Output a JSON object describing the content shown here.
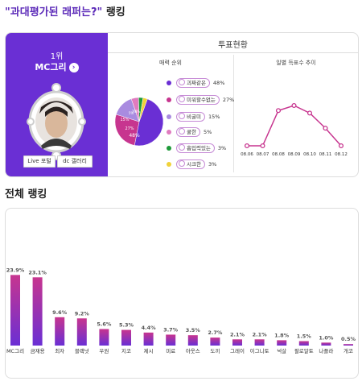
{
  "header": {
    "title_quote": "\"과대평가된 래퍼는?\"",
    "title_rest": " 랭킹"
  },
  "winner": {
    "rank": "1위",
    "name": "MC그리",
    "arrow": "›",
    "live_button": "Live 포털",
    "gallery_button": "dc 갤러리"
  },
  "vote": {
    "title": "투표현황",
    "charm_title": "매력 순위",
    "daily_title": "일별 득표수 추이",
    "pie_labels": [
      "48%",
      "27%",
      "15%",
      "5%",
      "3%",
      "3%"
    ],
    "legend": [
      {
        "label": "괴짜같은",
        "pct": "48%",
        "color": "#6a2fd4"
      },
      {
        "label": "미워할수없는",
        "pct": "27%",
        "color": "#c7358f"
      },
      {
        "label": "비굴미",
        "pct": "15%",
        "color": "#a98be0"
      },
      {
        "label": "쿨한",
        "pct": "5%",
        "color": "#e07bbf"
      },
      {
        "label": "흡입력있는",
        "pct": "3%",
        "color": "#1f9a3a"
      },
      {
        "label": "시크한",
        "pct": "3%",
        "color": "#f0d23a"
      }
    ],
    "daily_dates": [
      "08.06",
      "08.07",
      "08.08",
      "08.09",
      "08.10",
      "08.11",
      "08.12"
    ],
    "daily_values": [
      0,
      0,
      70,
      80,
      65,
      35,
      0
    ]
  },
  "ranking": {
    "title": "전체 랭킹"
  },
  "chart_data": {
    "type": "bar",
    "categories": [
      "MC그리",
      "금재용",
      "최자",
      "블랙넛",
      "우원",
      "지코",
      "제시",
      "미료",
      "아웃스",
      "도끼",
      "그레이",
      "이그니토",
      "넉살",
      "팔로알토",
      "나플라",
      "개코"
    ],
    "values": [
      23.9,
      23.1,
      9.6,
      9.2,
      5.6,
      5.3,
      4.4,
      3.7,
      3.5,
      2.7,
      2.1,
      2.1,
      1.8,
      1.5,
      1.0,
      0.5
    ],
    "labels": [
      "23.9%",
      "23.1%",
      "9.6%",
      "9.2%",
      "5.6%",
      "5.3%",
      "4.4%",
      "3.7%",
      "3.5%",
      "2.7%",
      "2.1%",
      "2.1%",
      "1.8%",
      "1.5%",
      "1.0%",
      "0.5%"
    ],
    "ylim": [
      0,
      25
    ],
    "colors": {
      "top": "#c7358f",
      "bottom": "#6a2fd4"
    }
  },
  "pie_data": {
    "type": "pie",
    "values": [
      48,
      27,
      15,
      5,
      3,
      3
    ],
    "colors": [
      "#6a2fd4",
      "#c7358f",
      "#a98be0",
      "#e07bbf",
      "#1f9a3a",
      "#f0d23a"
    ]
  }
}
